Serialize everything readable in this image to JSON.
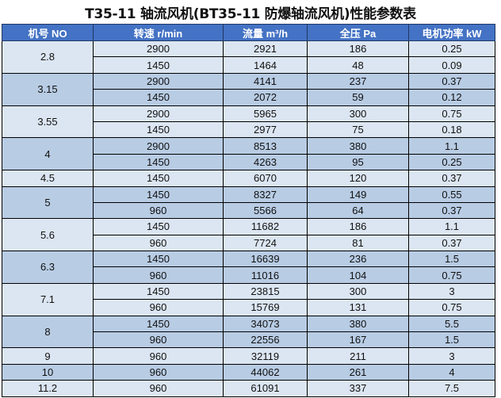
{
  "title": "T35-11 轴流风机(BT35-11 防爆轴流风机)性能参数表",
  "columns": [
    "机号 NO",
    "转速 r/min",
    "流量 m³/h",
    "全压 Pa",
    "电机功率 kW"
  ],
  "colors": {
    "header": "#4472c4",
    "row_light": "#dce6f2",
    "row_dark": "#b8cce4"
  },
  "groups": [
    {
      "no": "2.8",
      "rows": [
        [
          "2900",
          "2921",
          "186",
          "0.25"
        ],
        [
          "1450",
          "1464",
          "48",
          "0.09"
        ]
      ]
    },
    {
      "no": "3.15",
      "rows": [
        [
          "2900",
          "4141",
          "237",
          "0.37"
        ],
        [
          "1450",
          "2072",
          "59",
          "0.12"
        ]
      ]
    },
    {
      "no": "3.55",
      "rows": [
        [
          "2900",
          "5965",
          "300",
          "0.75"
        ],
        [
          "1450",
          "2977",
          "75",
          "0.18"
        ]
      ]
    },
    {
      "no": "4",
      "rows": [
        [
          "2900",
          "8513",
          "380",
          "1.1"
        ],
        [
          "1450",
          "4263",
          "95",
          "0.25"
        ]
      ]
    },
    {
      "no": "4.5",
      "rows": [
        [
          "1450",
          "6070",
          "120",
          "0.37"
        ]
      ]
    },
    {
      "no": "5",
      "rows": [
        [
          "1450",
          "8327",
          "149",
          "0.55"
        ],
        [
          "960",
          "5566",
          "64",
          "0.37"
        ]
      ]
    },
    {
      "no": "5.6",
      "rows": [
        [
          "1450",
          "11682",
          "186",
          "1.1"
        ],
        [
          "960",
          "7724",
          "81",
          "0.37"
        ]
      ]
    },
    {
      "no": "6.3",
      "rows": [
        [
          "1450",
          "16639",
          "236",
          "1.5"
        ],
        [
          "960",
          "11016",
          "104",
          "0.75"
        ]
      ]
    },
    {
      "no": "7.1",
      "rows": [
        [
          "1450",
          "23815",
          "300",
          "3"
        ],
        [
          "960",
          "15769",
          "131",
          "0.75"
        ]
      ]
    },
    {
      "no": "8",
      "rows": [
        [
          "1450",
          "34073",
          "380",
          "5.5"
        ],
        [
          "960",
          "22556",
          "167",
          "1.5"
        ]
      ]
    },
    {
      "no": "9",
      "rows": [
        [
          "960",
          "32119",
          "211",
          "3"
        ]
      ]
    },
    {
      "no": "10",
      "rows": [
        [
          "960",
          "44062",
          "261",
          "4"
        ]
      ]
    },
    {
      "no": "11.2",
      "rows": [
        [
          "960",
          "61091",
          "337",
          "7.5"
        ]
      ]
    }
  ]
}
